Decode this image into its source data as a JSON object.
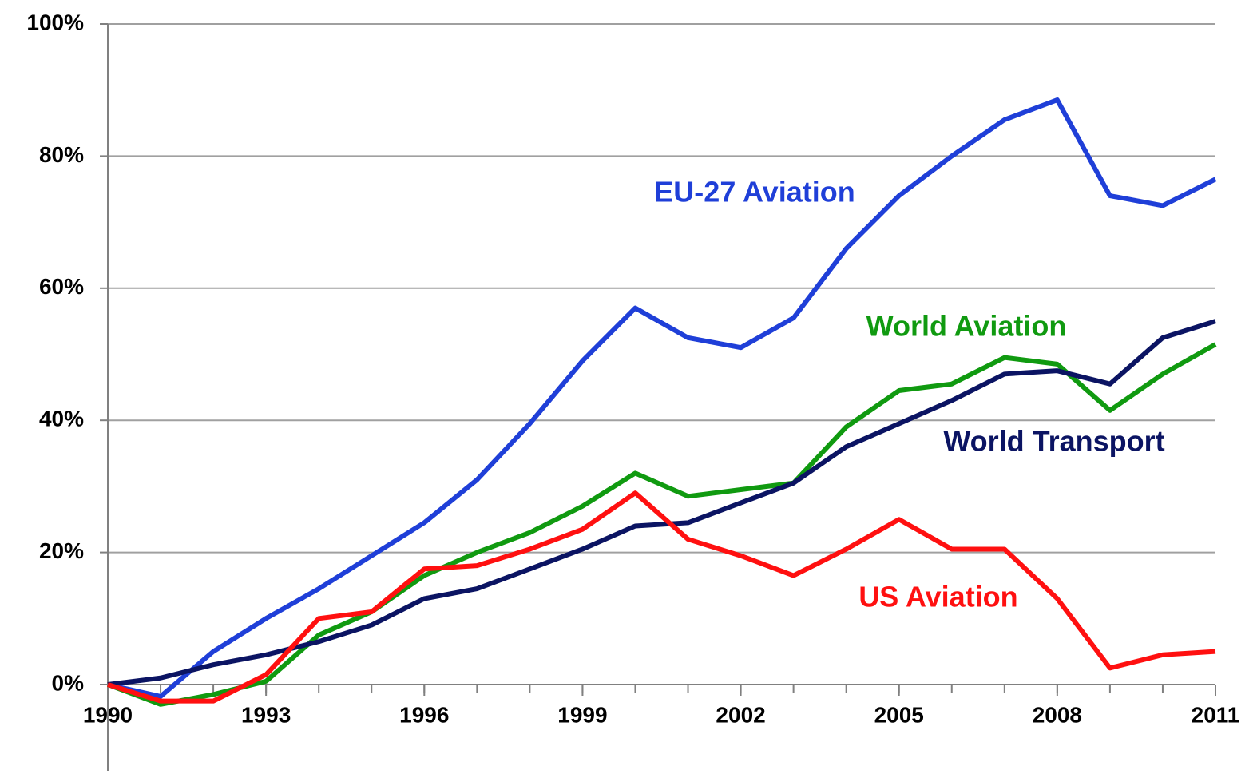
{
  "chart_data": {
    "type": "line",
    "x": [
      1990,
      1991,
      1992,
      1993,
      1994,
      1995,
      1996,
      1997,
      1998,
      1999,
      2000,
      2001,
      2002,
      2003,
      2004,
      2005,
      2006,
      2007,
      2008,
      2009,
      2010,
      2011
    ],
    "series": [
      {
        "name": "EU-27 Aviation",
        "color": "#1f3fd8",
        "values": [
          0,
          -1.8,
          5,
          10,
          14.5,
          19.5,
          24.5,
          31,
          39.5,
          49,
          57,
          52.5,
          51,
          55.5,
          66,
          74,
          80,
          85.5,
          88.5,
          74,
          72.5,
          76.5
        ]
      },
      {
        "name": "World Aviation",
        "color": "#109a10",
        "values": [
          0,
          -3,
          -1.5,
          0.5,
          7.5,
          11,
          16.5,
          20,
          23,
          27,
          32,
          28.5,
          29.5,
          30.5,
          39,
          44.5,
          45.5,
          49.5,
          48.5,
          41.5,
          47,
          51.5
        ]
      },
      {
        "name": "World Transport",
        "color": "#0b1463",
        "values": [
          0,
          1,
          3,
          4.5,
          6.5,
          9,
          13,
          14.5,
          17.5,
          20.5,
          24,
          24.5,
          27.5,
          30.5,
          36,
          39.5,
          43,
          47,
          47.5,
          45.5,
          52.5,
          55
        ]
      },
      {
        "name": "US Aviation",
        "color": "#ff1010",
        "values": [
          0,
          -2.5,
          -2.5,
          1.5,
          10,
          11,
          17.5,
          18,
          20.5,
          23.5,
          29,
          22,
          19.5,
          16.5,
          20.5,
          25,
          20.5,
          20.5,
          13,
          2.5,
          4.5,
          5
        ]
      }
    ],
    "xlim": [
      1990,
      2011
    ],
    "xticks": [
      1990,
      1993,
      1996,
      1999,
      2002,
      2005,
      2008,
      2011
    ],
    "ylim": [
      0,
      100
    ],
    "yticks": [
      {
        "value": 0,
        "label": "0%"
      },
      {
        "value": 20,
        "label": "20%"
      },
      {
        "value": 40,
        "label": "40%"
      },
      {
        "value": 60,
        "label": "60%"
      },
      {
        "value": 80,
        "label": "80%"
      },
      {
        "value": 100,
        "label": "100%"
      }
    ],
    "grid": true
  }
}
